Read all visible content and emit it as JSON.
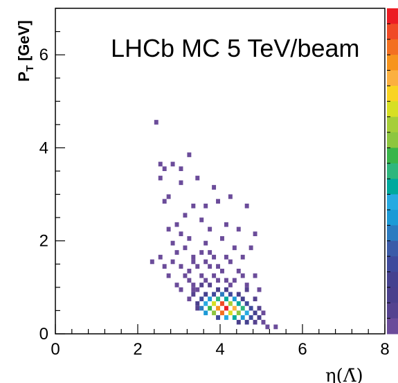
{
  "chart_data": {
    "type": "heatmap",
    "annotation": "LHCb MC 5 TeV/beam",
    "xlabel": "η(Λ̄)",
    "ylabel": "P",
    "ylabel_sub": "T",
    "ylabel_unit": " [GeV]",
    "xlim": [
      0,
      8
    ],
    "ylim": [
      0,
      7
    ],
    "x_ticks": [
      "0",
      "2",
      "4",
      "6",
      "8"
    ],
    "y_ticks": [
      "0",
      "2",
      "4",
      "6"
    ],
    "colorbar": {
      "colors": [
        "#ec1c24",
        "#f04a26",
        "#f37021",
        "#f7941d",
        "#fbb040",
        "#f9d423",
        "#d7df23",
        "#a6ce39",
        "#8dc63f",
        "#39b54a",
        "#2eb67d",
        "#00a99d",
        "#27aae1",
        "#1c9ad6",
        "#2b7bc0",
        "#3b5ba8",
        "#3f4a9c",
        "#45418f",
        "#4a3f8c",
        "#55428f",
        "#6b4c9a"
      ]
    },
    "grid": false,
    "bin_width_x": 0.1,
    "bin_width_y": 0.1,
    "series": [
      {
        "cells": [
          [
            2.4,
            4.5,
            1
          ],
          [
            2.5,
            3.6,
            1
          ],
          [
            2.6,
            3.5,
            1
          ],
          [
            2.8,
            3.6,
            1
          ],
          [
            3.0,
            3.5,
            1
          ],
          [
            3.2,
            3.8,
            1
          ],
          [
            3.0,
            3.2,
            1
          ],
          [
            3.4,
            3.3,
            1
          ],
          [
            2.5,
            3.3,
            1
          ],
          [
            2.7,
            2.9,
            1
          ],
          [
            3.6,
            2.7,
            1
          ],
          [
            3.9,
            2.8,
            1
          ],
          [
            4.2,
            2.9,
            1
          ],
          [
            4.6,
            2.7,
            1
          ],
          [
            2.6,
            2.8,
            1
          ],
          [
            3.8,
            3.1,
            1
          ],
          [
            3.1,
            2.5,
            1
          ],
          [
            3.3,
            2.7,
            1
          ],
          [
            2.9,
            2.3,
            1
          ],
          [
            3.5,
            2.4,
            1
          ],
          [
            4.1,
            2.3,
            1
          ],
          [
            4.4,
            2.2,
            1
          ],
          [
            4.8,
            2.1,
            1
          ],
          [
            2.7,
            2.2,
            1
          ],
          [
            3.0,
            2.1,
            1
          ],
          [
            3.7,
            2.2,
            1
          ],
          [
            3.2,
            2.0,
            1
          ],
          [
            3.6,
            1.9,
            1
          ],
          [
            4.0,
            2.0,
            1
          ],
          [
            4.3,
            1.8,
            1
          ],
          [
            2.8,
            1.9,
            1
          ],
          [
            4.7,
            1.8,
            1
          ],
          [
            2.5,
            1.6,
            1
          ],
          [
            2.9,
            1.7,
            1
          ],
          [
            3.1,
            1.8,
            1
          ],
          [
            3.3,
            1.6,
            1
          ],
          [
            3.5,
            1.7,
            1
          ],
          [
            3.8,
            1.6,
            1
          ],
          [
            4.2,
            1.5,
            1
          ],
          [
            4.5,
            1.6,
            1
          ],
          [
            2.3,
            1.5,
            1
          ],
          [
            2.6,
            1.4,
            1
          ],
          [
            3.0,
            1.4,
            1
          ],
          [
            3.4,
            1.4,
            1
          ],
          [
            3.7,
            1.4,
            1
          ],
          [
            4.0,
            1.3,
            1
          ],
          [
            4.4,
            1.3,
            1
          ],
          [
            4.8,
            1.2,
            1
          ],
          [
            2.7,
            1.2,
            1
          ],
          [
            3.1,
            1.2,
            1
          ],
          [
            3.5,
            1.2,
            1
          ],
          [
            3.9,
            1.1,
            1
          ],
          [
            4.1,
            1.1,
            1
          ],
          [
            4.6,
            1.0,
            1
          ],
          [
            2.9,
            1.0,
            1
          ],
          [
            3.3,
            1.0,
            1
          ],
          [
            3.2,
            1.3,
            1
          ],
          [
            3.6,
            1.1,
            1
          ],
          [
            3.8,
            1.2,
            1
          ],
          [
            4.3,
            1.1,
            1
          ],
          [
            4.9,
            0.9,
            1
          ],
          [
            3.0,
            0.9,
            1
          ],
          [
            3.4,
            0.9,
            1
          ],
          [
            2.8,
            1.5,
            1
          ],
          [
            3.6,
            1.5,
            1
          ],
          [
            3.9,
            1.4,
            1
          ],
          [
            3.3,
            1.5,
            1
          ],
          [
            3.7,
            1.7,
            1
          ],
          [
            4.1,
            1.6,
            1
          ],
          [
            3.2,
            1.1,
            1
          ],
          [
            4.5,
            1.2,
            1
          ],
          [
            4.2,
            1.0,
            1
          ],
          [
            3.5,
            1.0,
            2
          ],
          [
            3.7,
            1.0,
            2
          ],
          [
            3.9,
            0.9,
            3
          ],
          [
            4.1,
            0.9,
            3
          ],
          [
            3.6,
            0.8,
            4
          ],
          [
            3.8,
            0.8,
            5
          ],
          [
            4.0,
            0.8,
            6
          ],
          [
            4.2,
            0.8,
            5
          ],
          [
            4.4,
            0.8,
            3
          ],
          [
            3.5,
            0.7,
            5
          ],
          [
            3.7,
            0.7,
            7
          ],
          [
            3.9,
            0.7,
            10
          ],
          [
            4.1,
            0.7,
            9
          ],
          [
            4.3,
            0.7,
            7
          ],
          [
            4.5,
            0.7,
            4
          ],
          [
            3.4,
            0.6,
            3
          ],
          [
            3.6,
            0.6,
            8
          ],
          [
            3.8,
            0.6,
            14
          ],
          [
            4.0,
            0.6,
            18
          ],
          [
            4.2,
            0.6,
            13
          ],
          [
            4.4,
            0.6,
            9
          ],
          [
            4.6,
            0.6,
            5
          ],
          [
            3.5,
            0.5,
            6
          ],
          [
            3.7,
            0.5,
            11
          ],
          [
            3.9,
            0.5,
            16
          ],
          [
            4.1,
            0.5,
            19
          ],
          [
            4.3,
            0.5,
            15
          ],
          [
            4.5,
            0.5,
            10
          ],
          [
            4.7,
            0.5,
            5
          ],
          [
            3.6,
            0.4,
            7
          ],
          [
            3.8,
            0.4,
            12
          ],
          [
            4.0,
            0.4,
            17
          ],
          [
            4.2,
            0.4,
            14
          ],
          [
            4.4,
            0.4,
            12
          ],
          [
            4.6,
            0.4,
            8
          ],
          [
            4.8,
            0.4,
            4
          ],
          [
            3.9,
            0.3,
            5
          ],
          [
            4.1,
            0.3,
            8
          ],
          [
            4.3,
            0.3,
            9
          ],
          [
            4.5,
            0.3,
            7
          ],
          [
            4.7,
            0.3,
            5
          ],
          [
            4.9,
            0.3,
            3
          ],
          [
            4.4,
            0.2,
            3
          ],
          [
            4.6,
            0.2,
            4
          ],
          [
            4.8,
            0.2,
            2
          ],
          [
            5.0,
            0.2,
            1
          ],
          [
            5.3,
            0.1,
            1
          ],
          [
            5.1,
            0.1,
            1
          ],
          [
            3.3,
            0.8,
            2
          ],
          [
            3.2,
            0.7,
            1
          ],
          [
            4.6,
            0.9,
            2
          ],
          [
            4.8,
            0.7,
            2
          ],
          [
            4.9,
            0.5,
            2
          ],
          [
            5.0,
            0.4,
            1
          ],
          [
            3.4,
            0.5,
            2
          ],
          [
            3.3,
            0.9,
            1
          ]
        ]
      }
    ]
  }
}
